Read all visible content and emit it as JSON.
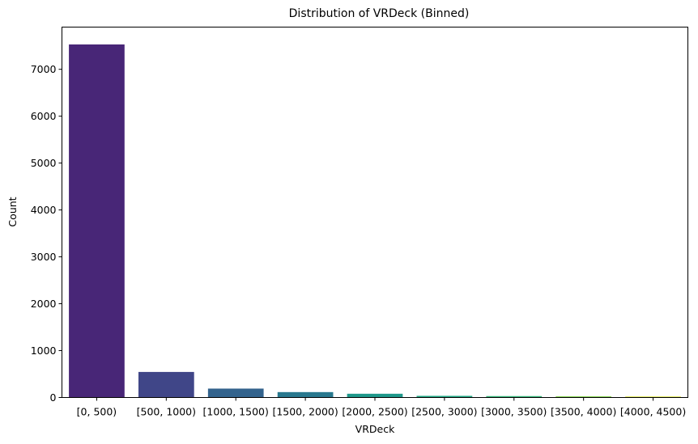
{
  "chart_data": {
    "type": "bar",
    "title": "Distribution of VRDeck (Binned)",
    "xlabel": "VRDeck",
    "ylabel": "Count",
    "categories": [
      "[0, 500)",
      "[500, 1000)",
      "[1000, 1500)",
      "[1500, 2000)",
      "[2000, 2500)",
      "[2500, 3000)",
      "[3000, 3500)",
      "[3500, 4000)",
      "[4000, 4500)"
    ],
    "values": [
      7530,
      545,
      190,
      115,
      80,
      35,
      30,
      25,
      20
    ],
    "colors": [
      "#482677",
      "#404688",
      "#33638d",
      "#28788e",
      "#1f988b",
      "#22a884",
      "#35b779",
      "#84d44b",
      "#d8e219"
    ],
    "ylim": [
      0,
      7900
    ],
    "yticks": [
      0,
      1000,
      2000,
      3000,
      4000,
      5000,
      6000,
      7000
    ],
    "grid": false,
    "legend": "none"
  }
}
